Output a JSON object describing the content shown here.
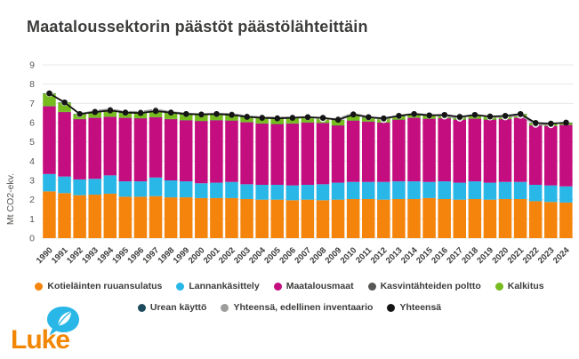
{
  "title": "Maataloussektorin päästöt päästölähteittäin",
  "y_axis_label": "Mt CO2-ekv.",
  "logo": {
    "text": "Luke"
  },
  "colors": {
    "title_text": "#3C3C3B",
    "axis_text": "#575756",
    "gridline": "#E8E8E8",
    "logo_orange": "#F28705",
    "logo_cyan": "#29B7E8"
  },
  "chart_data": {
    "type": "bar",
    "stacked": true,
    "title": "Maataloussektorin päästöt päästölähteittäin",
    "xlabel": "",
    "ylabel": "Mt CO2-ekv.",
    "ylim": [
      0,
      9
    ],
    "yticks": [
      0,
      1,
      2,
      3,
      4,
      5,
      6,
      7,
      8,
      9
    ],
    "grid": true,
    "legend_position": "bottom",
    "legend_rows": [
      [
        0,
        1,
        2,
        3,
        4
      ],
      [
        5,
        6,
        7
      ]
    ],
    "categories": [
      "1990",
      "1991",
      "1992",
      "1993",
      "1994",
      "1995",
      "1996",
      "1997",
      "1998",
      "1999",
      "2000",
      "2001",
      "2002",
      "2003",
      "2004",
      "2005",
      "2006",
      "2007",
      "2008",
      "2009",
      "2010",
      "2011",
      "2012",
      "2013",
      "2014",
      "2015",
      "2016",
      "2017",
      "2018",
      "2019",
      "2020",
      "2021",
      "2022",
      "2023",
      "2024"
    ],
    "series": [
      {
        "name": "Kotieläinten ruuansulatus",
        "type": "bar",
        "color": "#F5840C",
        "values": [
          2.43,
          2.34,
          2.23,
          2.26,
          2.31,
          2.15,
          2.15,
          2.18,
          2.12,
          2.12,
          2.08,
          2.08,
          2.08,
          2.03,
          2.0,
          2.0,
          1.97,
          2.0,
          1.97,
          2.0,
          2.03,
          2.03,
          2.0,
          2.03,
          2.03,
          2.08,
          2.03,
          2.0,
          2.03,
          2.0,
          2.03,
          2.03,
          1.92,
          1.88,
          1.85
        ]
      },
      {
        "name": "Lannankäsittely",
        "type": "bar",
        "color": "#29B7E8",
        "values": [
          0.9,
          0.86,
          0.82,
          0.82,
          0.95,
          0.8,
          0.8,
          0.97,
          0.88,
          0.83,
          0.77,
          0.8,
          0.84,
          0.77,
          0.77,
          0.77,
          0.77,
          0.77,
          0.83,
          0.88,
          0.89,
          0.89,
          0.92,
          0.92,
          0.92,
          0.84,
          0.92,
          0.88,
          0.92,
          0.88,
          0.89,
          0.89,
          0.85,
          0.86,
          0.84
        ]
      },
      {
        "name": "Maatalousmaat",
        "type": "bar",
        "color": "#C40D7F",
        "values": [
          3.52,
          3.35,
          3.13,
          3.17,
          3.04,
          3.3,
          3.27,
          3.13,
          3.18,
          3.17,
          3.23,
          3.24,
          3.18,
          3.22,
          3.18,
          3.15,
          3.21,
          3.23,
          3.18,
          2.97,
          3.18,
          3.13,
          3.08,
          3.2,
          3.3,
          3.28,
          3.27,
          3.27,
          3.25,
          3.27,
          3.26,
          3.33,
          3.08,
          3.08,
          3.19
        ]
      },
      {
        "name": "Kasvintähteiden poltto",
        "type": "bar",
        "color": "#575756",
        "values": [
          0.01,
          0.01,
          0.01,
          0.01,
          0.01,
          0.01,
          0.01,
          0.01,
          0.01,
          0.01,
          0.01,
          0.01,
          0.01,
          0.01,
          0.01,
          0.01,
          0.01,
          0.01,
          0.01,
          0.01,
          0.01,
          0.01,
          0.01,
          0.01,
          0.01,
          0.01,
          0.01,
          0.01,
          0.01,
          0.01,
          0.01,
          0.01,
          0.01,
          0.01,
          0.01
        ]
      },
      {
        "name": "Kalkitus",
        "type": "bar",
        "color": "#77BC1F",
        "values": [
          0.65,
          0.48,
          0.25,
          0.28,
          0.31,
          0.25,
          0.26,
          0.3,
          0.32,
          0.31,
          0.32,
          0.31,
          0.28,
          0.26,
          0.28,
          0.28,
          0.28,
          0.26,
          0.25,
          0.28,
          0.3,
          0.21,
          0.2,
          0.18,
          0.18,
          0.16,
          0.16,
          0.13,
          0.18,
          0.15,
          0.15,
          0.18,
          0.11,
          0.11,
          0.1
        ]
      },
      {
        "name": "Urean käyttö",
        "type": "bar",
        "color": "#1D4A5C",
        "values": [
          0.01,
          0.01,
          0.01,
          0.01,
          0.01,
          0.01,
          0.01,
          0.01,
          0.01,
          0.01,
          0.01,
          0.01,
          0.01,
          0.01,
          0.01,
          0.01,
          0.01,
          0.01,
          0.01,
          0.01,
          0.01,
          0.01,
          0.01,
          0.01,
          0.01,
          0.01,
          0.01,
          0.01,
          0.01,
          0.01,
          0.01,
          0.01,
          0.01,
          0.01,
          0.01
        ]
      },
      {
        "name": "Yhteensä, edellinen inventaario",
        "type": "line",
        "color": "#9D9D9C",
        "values": [
          7.52,
          7.05,
          6.45,
          6.61,
          6.7,
          6.56,
          6.57,
          6.68,
          6.56,
          6.48,
          6.45,
          6.47,
          6.46,
          6.34,
          6.28,
          6.27,
          6.28,
          6.3,
          6.2,
          6.21,
          6.47,
          6.3,
          6.16,
          6.37,
          6.47,
          6.4,
          6.34,
          6.23,
          6.42,
          6.29,
          6.3,
          6.38,
          5.91,
          5.89,
          null
        ]
      },
      {
        "name": "Yhteensä",
        "type": "line",
        "color": "#151515",
        "values": [
          7.52,
          7.05,
          6.45,
          6.55,
          6.63,
          6.52,
          6.5,
          6.6,
          6.52,
          6.45,
          6.42,
          6.45,
          6.4,
          6.3,
          6.25,
          6.22,
          6.25,
          6.28,
          6.25,
          6.15,
          6.42,
          6.28,
          6.22,
          6.35,
          6.45,
          6.38,
          6.4,
          6.3,
          6.4,
          6.32,
          6.35,
          6.45,
          5.98,
          5.95,
          6.0
        ]
      }
    ]
  }
}
